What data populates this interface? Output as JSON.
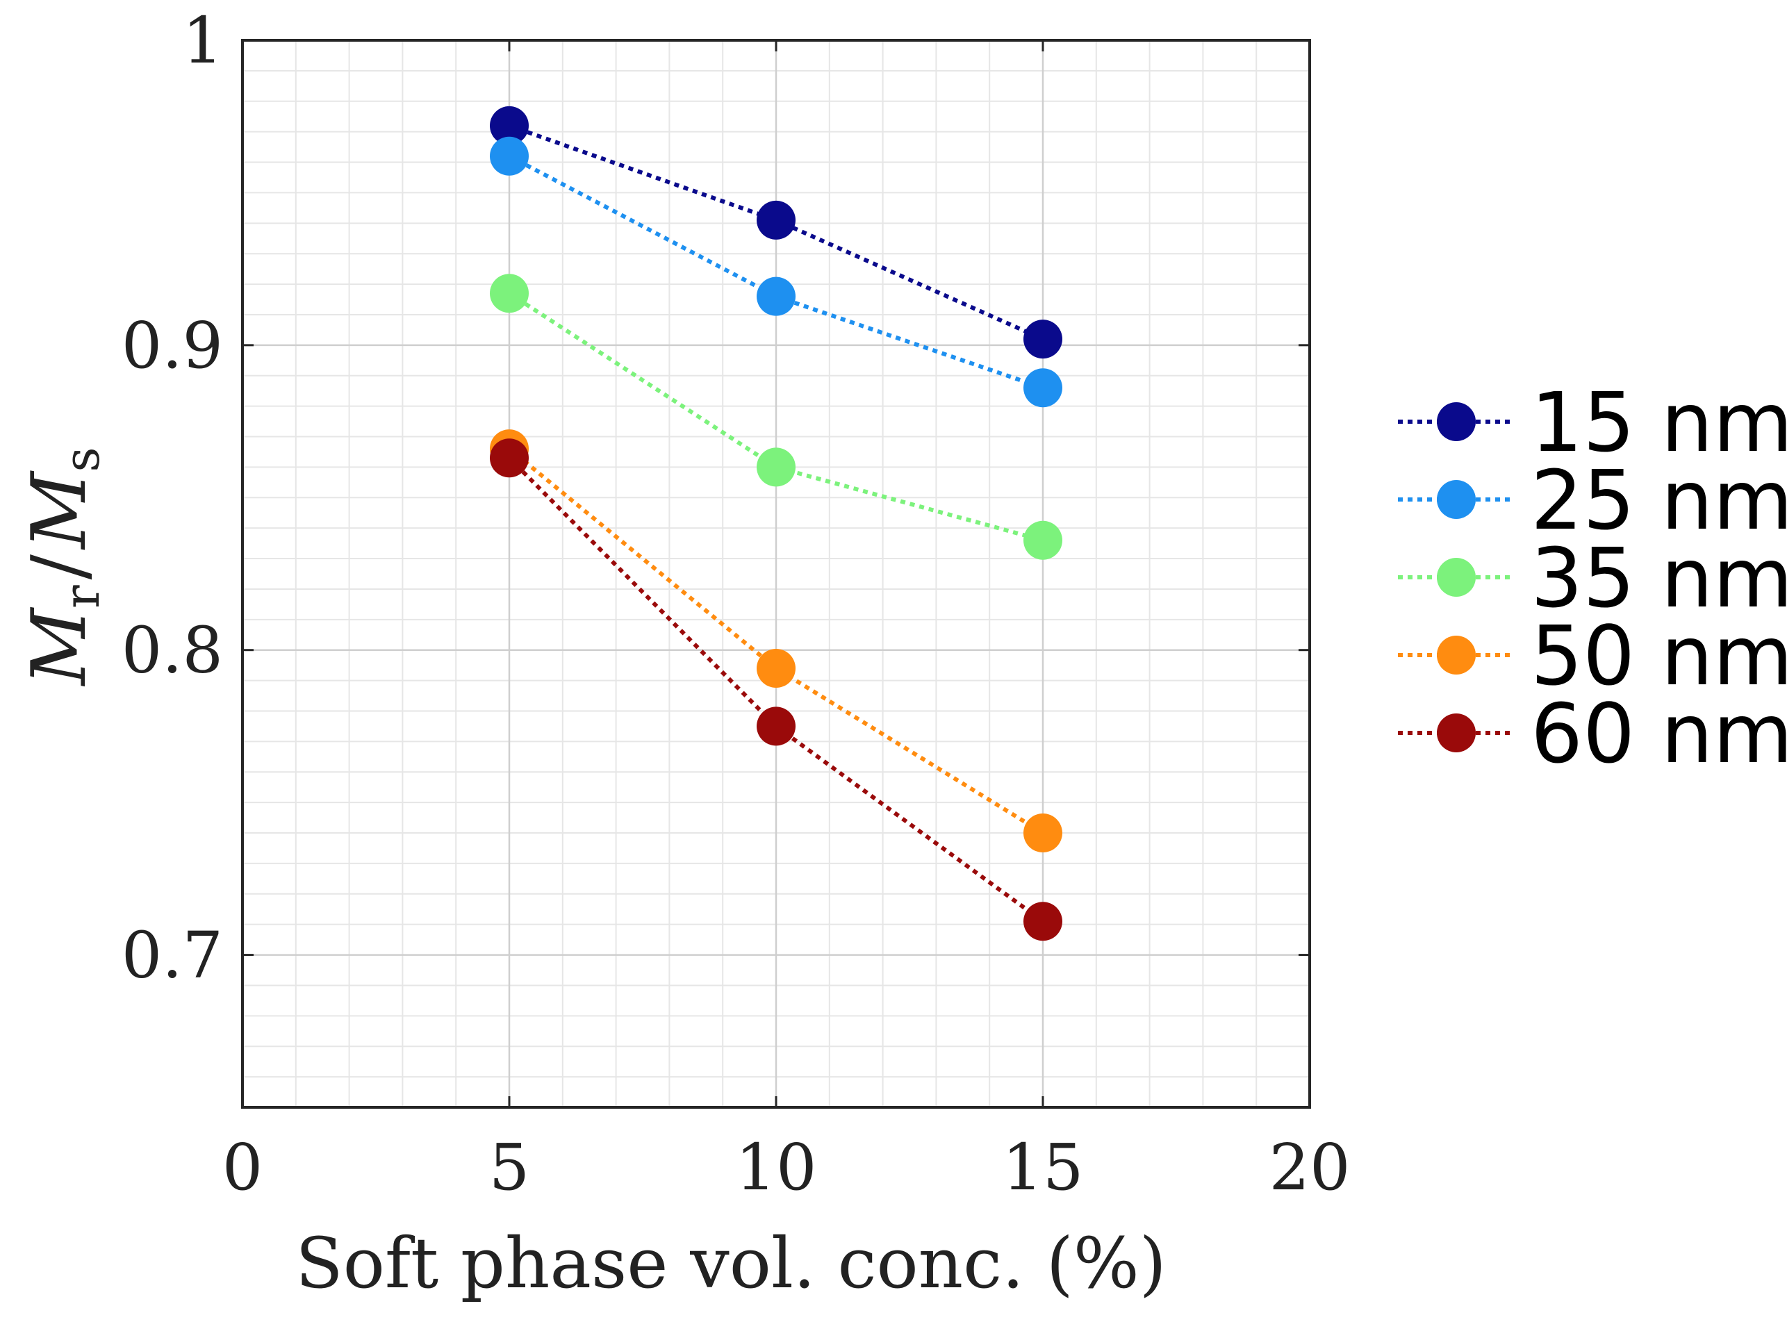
{
  "chart_data": {
    "type": "line",
    "title": "",
    "xlabel": "Soft phase vol. conc. (%)",
    "ylabel": {
      "first_symbol": "M",
      "first_subscript": "r",
      "separator": "/",
      "second_symbol": "M",
      "second_subscript": "s"
    },
    "xlim": [
      0,
      20
    ],
    "ylim": [
      0.65,
      1.0
    ],
    "xticks": [
      0,
      5,
      10,
      15,
      20
    ],
    "xtick_labels": [
      "0",
      "5",
      "10",
      "15",
      "20"
    ],
    "yticks": [
      0.7,
      0.8,
      0.9,
      1.0
    ],
    "ytick_labels": [
      "0.7",
      "0.8",
      "0.9",
      "1"
    ],
    "grid": "on",
    "legend_position": "outside-right",
    "x": [
      5,
      10,
      15
    ],
    "series": [
      {
        "name": "15 nm",
        "color": "#0a0a8c",
        "values": [
          0.972,
          0.941,
          0.902
        ]
      },
      {
        "name": "25 nm",
        "color": "#1e90f0",
        "values": [
          0.962,
          0.916,
          0.886
        ]
      },
      {
        "name": "35 nm",
        "color": "#7cf27c",
        "values": [
          0.917,
          0.86,
          0.836
        ]
      },
      {
        "name": "50 nm",
        "color": "#ff8c10",
        "values": [
          0.866,
          0.794,
          0.74
        ]
      },
      {
        "name": "60 nm",
        "color": "#9a0a0a",
        "values": [
          0.863,
          0.775,
          0.711
        ]
      }
    ]
  }
}
